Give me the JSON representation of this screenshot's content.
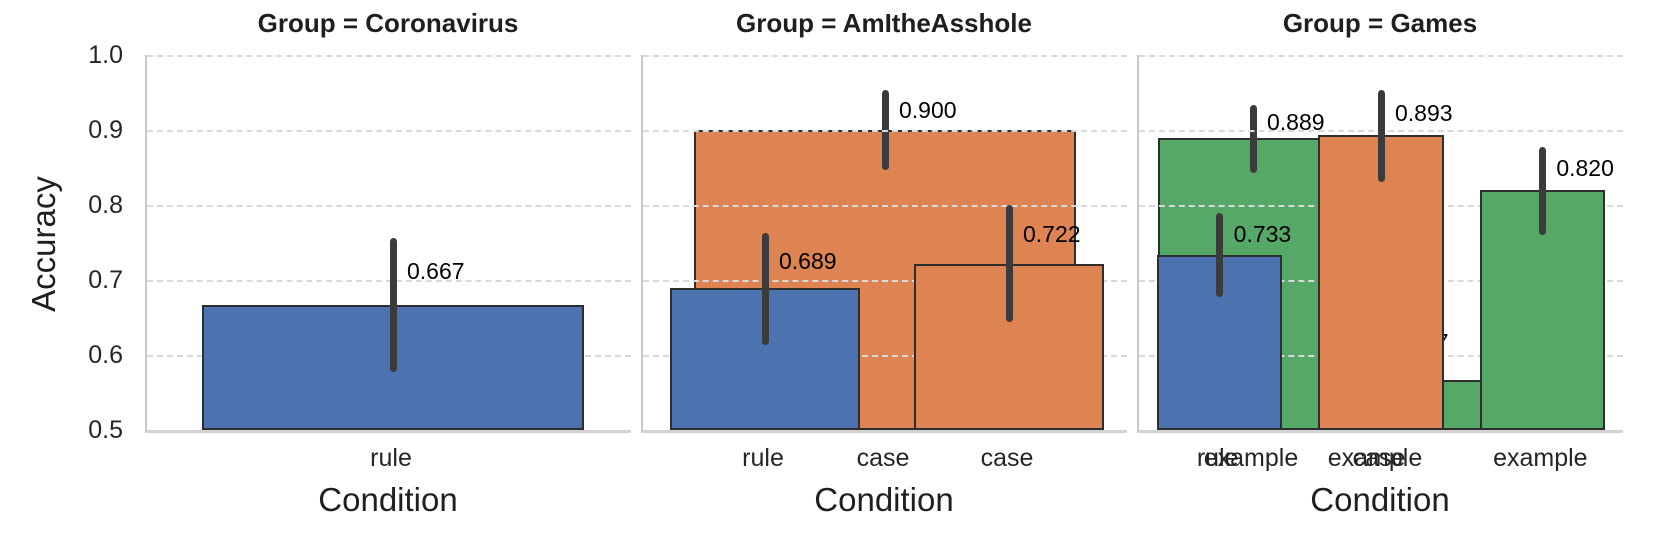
{
  "figure": {
    "background": "#ffffff",
    "grid_color": "#d9d9d9",
    "spine_color": "#c9c9c9",
    "text_color": "#1f1f1f"
  },
  "chart_data": {
    "type": "bar",
    "facet_variable": "Group",
    "xlabel": "Condition",
    "ylabel": "Accuracy",
    "categories": [
      "rule",
      "case",
      "example"
    ],
    "bar_colors": [
      "#4C72B0",
      "#DD8452",
      "#55A868"
    ],
    "bar_edge_color": "#2e2e2e",
    "error_bar_color": "#3b3b3b",
    "ylim": [
      0.5,
      1.0
    ],
    "grid": "horizontal dashed",
    "legend_position": "none",
    "yticks": [
      {
        "v": 1.0,
        "label": "1.0"
      },
      {
        "v": 0.9,
        "label": "0.9"
      },
      {
        "v": 0.8,
        "label": "0.8"
      },
      {
        "v": 0.7,
        "label": "0.7"
      },
      {
        "v": 0.6,
        "label": "0.6"
      },
      {
        "v": 0.5,
        "label": "0.5"
      }
    ],
    "facets": [
      {
        "title": "Group = Coronavirus",
        "bars": [
          {
            "category": "rule",
            "value": 0.667,
            "label": "0.667",
            "err_low": 0.578,
            "err_high": 0.756
          },
          {
            "category": "case",
            "value": 0.9,
            "label": "0.900",
            "err_low": 0.847,
            "err_high": 0.953
          },
          {
            "category": "example",
            "value": 0.567,
            "label": "0.567",
            "err_low": 0.5,
            "err_high": 0.669
          }
        ]
      },
      {
        "title": "Group = AmItheAsshole",
        "bars": [
          {
            "category": "rule",
            "value": 0.689,
            "label": "0.689",
            "err_low": 0.613,
            "err_high": 0.763
          },
          {
            "category": "case",
            "value": 0.722,
            "label": "0.722",
            "err_low": 0.644,
            "err_high": 0.8
          },
          {
            "category": "example",
            "value": 0.889,
            "label": "0.889",
            "err_low": 0.843,
            "err_high": 0.933
          }
        ]
      },
      {
        "title": "Group = Games",
        "bars": [
          {
            "category": "rule",
            "value": 0.733,
            "label": "0.733",
            "err_low": 0.677,
            "err_high": 0.789
          },
          {
            "category": "case",
            "value": 0.893,
            "label": "0.893",
            "err_low": 0.831,
            "err_high": 0.953
          },
          {
            "category": "example",
            "value": 0.82,
            "label": "0.820",
            "err_low": 0.76,
            "err_high": 0.878
          }
        ]
      }
    ]
  }
}
